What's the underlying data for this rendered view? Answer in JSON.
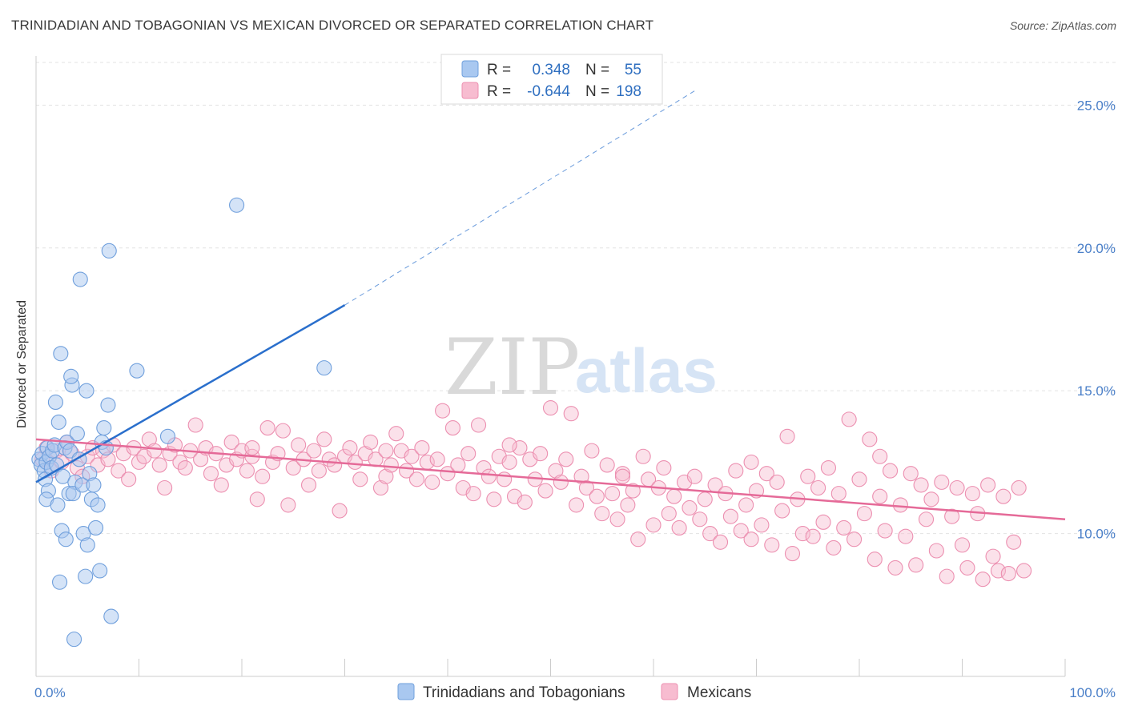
{
  "title": "TRINIDADIAN AND TOBAGONIAN VS MEXICAN DIVORCED OR SEPARATED CORRELATION CHART",
  "source": "Source: ZipAtlas.com",
  "watermark": {
    "zip": "ZIP",
    "atlas": "atlas"
  },
  "colors": {
    "blue_fill": "#a9c8f0",
    "blue_stroke": "#6f9fdc",
    "blue_line": "#2a6fcc",
    "pink_fill": "#f7bcd0",
    "pink_stroke": "#ec8fb0",
    "pink_line": "#e56a98",
    "grid": "#e3e3e3",
    "axis_text": "#4a7fc8"
  },
  "legend": {
    "rows": [
      {
        "r_label": "R =",
        "r_value": "0.348",
        "n_label": "N =",
        "n_value": "55"
      },
      {
        "r_label": "R =",
        "r_value": "-0.644",
        "n_label": "N =",
        "n_value": "198"
      }
    ]
  },
  "chart_data": {
    "type": "scatter",
    "xlabel": "",
    "ylabel": "Divorced or Separated",
    "xlim": [
      0,
      100
    ],
    "ylim": [
      5,
      27
    ],
    "x_tick_labels": [
      "0.0%",
      "100.0%"
    ],
    "y_ticks": [
      10,
      15,
      20,
      25
    ],
    "y_tick_labels": [
      "10.0%",
      "15.0%",
      "20.0%",
      "25.0%"
    ],
    "grid": true,
    "legend_position": "top-center",
    "series": [
      {
        "name": "Trinidadians and Tobagonians",
        "color": "#a9c8f0",
        "trend": {
          "x0": 0,
          "y0": 11.8,
          "x1": 30,
          "y1": 18.0,
          "dash_to_x": 64,
          "dash_to_y": 25.5
        },
        "points": [
          [
            0.3,
            12.6
          ],
          [
            0.5,
            12.4
          ],
          [
            0.6,
            12.8
          ],
          [
            0.8,
            12.2
          ],
          [
            1.0,
            12.5
          ],
          [
            1.1,
            13.0
          ],
          [
            0.9,
            11.9
          ],
          [
            1.2,
            11.5
          ],
          [
            1.0,
            11.2
          ],
          [
            1.3,
            12.7
          ],
          [
            1.5,
            12.3
          ],
          [
            1.6,
            12.9
          ],
          [
            1.8,
            13.1
          ],
          [
            2.0,
            12.4
          ],
          [
            2.1,
            11.0
          ],
          [
            1.9,
            14.6
          ],
          [
            2.4,
            16.3
          ],
          [
            2.2,
            13.9
          ],
          [
            2.6,
            12.0
          ],
          [
            2.8,
            13.0
          ],
          [
            2.5,
            10.1
          ],
          [
            2.9,
            9.8
          ],
          [
            2.3,
            8.3
          ],
          [
            3.0,
            13.2
          ],
          [
            3.3,
            12.9
          ],
          [
            3.5,
            15.2
          ],
          [
            3.8,
            11.8
          ],
          [
            4.0,
            13.5
          ],
          [
            3.2,
            11.4
          ],
          [
            3.6,
            11.4
          ],
          [
            4.2,
            12.6
          ],
          [
            4.5,
            11.7
          ],
          [
            4.9,
            15.0
          ],
          [
            4.6,
            10.0
          ],
          [
            4.8,
            8.5
          ],
          [
            5.0,
            9.6
          ],
          [
            5.2,
            12.1
          ],
          [
            5.4,
            11.2
          ],
          [
            5.6,
            11.7
          ],
          [
            5.8,
            10.2
          ],
          [
            6.0,
            11.0
          ],
          [
            6.2,
            8.7
          ],
          [
            6.4,
            13.2
          ],
          [
            6.6,
            13.7
          ],
          [
            6.8,
            13.0
          ],
          [
            7.0,
            14.5
          ],
          [
            7.3,
            7.1
          ],
          [
            3.4,
            15.5
          ],
          [
            3.7,
            6.3
          ],
          [
            4.3,
            18.9
          ],
          [
            7.1,
            19.9
          ],
          [
            9.8,
            15.7
          ],
          [
            12.8,
            13.4
          ],
          [
            19.5,
            21.5
          ],
          [
            28.0,
            15.8
          ]
        ]
      },
      {
        "name": "Mexicans",
        "color": "#f7bcd0",
        "trend": {
          "x0": 0,
          "y0": 13.3,
          "x1": 100,
          "y1": 10.5
        },
        "points": [
          [
            0.6,
            12.6
          ],
          [
            1.0,
            13.0
          ],
          [
            1.5,
            12.2
          ],
          [
            2.0,
            12.9
          ],
          [
            2.5,
            12.5
          ],
          [
            3.0,
            13.2
          ],
          [
            3.5,
            12.8
          ],
          [
            4.0,
            12.3
          ],
          [
            4.5,
            12.0
          ],
          [
            5.0,
            12.7
          ],
          [
            5.5,
            13.0
          ],
          [
            6.0,
            12.4
          ],
          [
            6.5,
            12.9
          ],
          [
            7.0,
            12.6
          ],
          [
            7.5,
            13.1
          ],
          [
            8.0,
            12.2
          ],
          [
            8.5,
            12.8
          ],
          [
            9.0,
            11.9
          ],
          [
            9.5,
            13.0
          ],
          [
            10.0,
            12.5
          ],
          [
            10.5,
            12.7
          ],
          [
            11.0,
            13.3
          ],
          [
            11.5,
            12.9
          ],
          [
            12.0,
            12.4
          ],
          [
            12.5,
            11.6
          ],
          [
            13.0,
            12.8
          ],
          [
            13.5,
            13.1
          ],
          [
            14.0,
            12.5
          ],
          [
            14.5,
            12.3
          ],
          [
            15.0,
            12.9
          ],
          [
            15.5,
            13.8
          ],
          [
            16.0,
            12.6
          ],
          [
            16.5,
            13.0
          ],
          [
            17.0,
            12.1
          ],
          [
            17.5,
            12.8
          ],
          [
            18.0,
            11.7
          ],
          [
            18.5,
            12.4
          ],
          [
            19.0,
            13.2
          ],
          [
            19.5,
            12.6
          ],
          [
            20.0,
            12.9
          ],
          [
            20.5,
            12.2
          ],
          [
            21.0,
            12.7
          ],
          [
            21.5,
            11.2
          ],
          [
            22.0,
            12.0
          ],
          [
            22.5,
            13.7
          ],
          [
            23.0,
            12.5
          ],
          [
            23.5,
            12.8
          ],
          [
            24.0,
            13.6
          ],
          [
            24.5,
            11.0
          ],
          [
            25.0,
            12.3
          ],
          [
            25.5,
            13.1
          ],
          [
            26.0,
            12.6
          ],
          [
            26.5,
            11.7
          ],
          [
            27.0,
            12.9
          ],
          [
            27.5,
            12.2
          ],
          [
            28.0,
            13.3
          ],
          [
            28.5,
            12.6
          ],
          [
            29.0,
            12.4
          ],
          [
            29.5,
            10.8
          ],
          [
            30.0,
            12.7
          ],
          [
            30.5,
            13.0
          ],
          [
            31.0,
            12.5
          ],
          [
            31.5,
            11.9
          ],
          [
            32.0,
            12.8
          ],
          [
            32.5,
            13.2
          ],
          [
            33.0,
            12.6
          ],
          [
            33.5,
            11.6
          ],
          [
            34.0,
            12.0
          ],
          [
            34.5,
            12.4
          ],
          [
            35.0,
            13.5
          ],
          [
            35.5,
            12.9
          ],
          [
            36.0,
            12.2
          ],
          [
            36.5,
            12.7
          ],
          [
            37.0,
            11.9
          ],
          [
            37.5,
            13.0
          ],
          [
            38.0,
            12.5
          ],
          [
            38.5,
            11.8
          ],
          [
            39.0,
            12.6
          ],
          [
            39.5,
            14.3
          ],
          [
            40.0,
            12.1
          ],
          [
            40.5,
            13.7
          ],
          [
            41.0,
            12.4
          ],
          [
            41.5,
            11.6
          ],
          [
            42.0,
            12.8
          ],
          [
            42.5,
            11.4
          ],
          [
            43.0,
            13.8
          ],
          [
            43.5,
            12.3
          ],
          [
            44.0,
            12.0
          ],
          [
            44.5,
            11.2
          ],
          [
            45.0,
            12.7
          ],
          [
            45.5,
            11.9
          ],
          [
            46.0,
            12.5
          ],
          [
            46.5,
            11.3
          ],
          [
            47.0,
            13.0
          ],
          [
            47.5,
            11.1
          ],
          [
            48.0,
            12.6
          ],
          [
            48.5,
            11.9
          ],
          [
            49.0,
            12.8
          ],
          [
            49.5,
            11.5
          ],
          [
            50.0,
            14.4
          ],
          [
            50.5,
            12.2
          ],
          [
            51.0,
            11.8
          ],
          [
            51.5,
            12.6
          ],
          [
            52.0,
            14.2
          ],
          [
            52.5,
            11.0
          ],
          [
            53.0,
            12.0
          ],
          [
            53.5,
            11.6
          ],
          [
            54.0,
            12.9
          ],
          [
            54.5,
            11.3
          ],
          [
            55.0,
            10.7
          ],
          [
            55.5,
            12.4
          ],
          [
            56.0,
            11.4
          ],
          [
            56.5,
            10.5
          ],
          [
            57.0,
            12.1
          ],
          [
            57.5,
            11.0
          ],
          [
            58.0,
            11.5
          ],
          [
            58.5,
            9.8
          ],
          [
            59.0,
            12.7
          ],
          [
            59.5,
            11.9
          ],
          [
            60.0,
            10.3
          ],
          [
            60.5,
            11.6
          ],
          [
            61.0,
            12.3
          ],
          [
            61.5,
            10.7
          ],
          [
            62.0,
            11.3
          ],
          [
            62.5,
            10.2
          ],
          [
            63.0,
            11.8
          ],
          [
            63.5,
            10.9
          ],
          [
            64.0,
            12.0
          ],
          [
            64.5,
            10.5
          ],
          [
            65.0,
            11.2
          ],
          [
            65.5,
            10.0
          ],
          [
            66.0,
            11.7
          ],
          [
            66.5,
            9.7
          ],
          [
            67.0,
            11.4
          ],
          [
            67.5,
            10.6
          ],
          [
            68.0,
            12.2
          ],
          [
            68.5,
            10.1
          ],
          [
            69.0,
            11.0
          ],
          [
            69.5,
            9.8
          ],
          [
            70.0,
            11.5
          ],
          [
            70.5,
            10.3
          ],
          [
            71.0,
            12.1
          ],
          [
            71.5,
            9.6
          ],
          [
            72.0,
            11.8
          ],
          [
            72.5,
            10.8
          ],
          [
            73.0,
            13.4
          ],
          [
            73.5,
            9.3
          ],
          [
            74.0,
            11.2
          ],
          [
            74.5,
            10.0
          ],
          [
            75.0,
            12.0
          ],
          [
            75.5,
            9.9
          ],
          [
            76.0,
            11.6
          ],
          [
            76.5,
            10.4
          ],
          [
            77.0,
            12.3
          ],
          [
            77.5,
            9.5
          ],
          [
            78.0,
            11.4
          ],
          [
            78.5,
            10.2
          ],
          [
            79.0,
            14.0
          ],
          [
            79.5,
            9.8
          ],
          [
            80.0,
            11.9
          ],
          [
            80.5,
            10.7
          ],
          [
            81.0,
            13.3
          ],
          [
            81.5,
            9.1
          ],
          [
            82.0,
            11.3
          ],
          [
            82.5,
            10.1
          ],
          [
            83.0,
            12.2
          ],
          [
            83.5,
            8.8
          ],
          [
            84.0,
            11.0
          ],
          [
            84.5,
            9.9
          ],
          [
            85.0,
            12.1
          ],
          [
            85.5,
            8.9
          ],
          [
            86.0,
            11.7
          ],
          [
            86.5,
            10.5
          ],
          [
            87.0,
            11.2
          ],
          [
            87.5,
            9.4
          ],
          [
            88.0,
            11.8
          ],
          [
            88.5,
            8.5
          ],
          [
            89.0,
            10.6
          ],
          [
            89.5,
            11.6
          ],
          [
            90.0,
            9.6
          ],
          [
            90.5,
            8.8
          ],
          [
            91.0,
            11.4
          ],
          [
            91.5,
            10.7
          ],
          [
            92.0,
            8.4
          ],
          [
            92.5,
            11.7
          ],
          [
            93.0,
            9.2
          ],
          [
            93.5,
            8.7
          ],
          [
            94.0,
            11.3
          ],
          [
            94.5,
            8.6
          ],
          [
            95.0,
            9.7
          ],
          [
            95.5,
            11.6
          ],
          [
            96.0,
            8.7
          ],
          [
            21.0,
            13.0
          ],
          [
            34.0,
            12.9
          ],
          [
            46.0,
            13.1
          ],
          [
            57.0,
            12.0
          ],
          [
            69.5,
            12.5
          ],
          [
            82.0,
            12.7
          ]
        ]
      }
    ]
  },
  "bottom_legend": [
    "Trinidadians and Tobagonians",
    "Mexicans"
  ]
}
